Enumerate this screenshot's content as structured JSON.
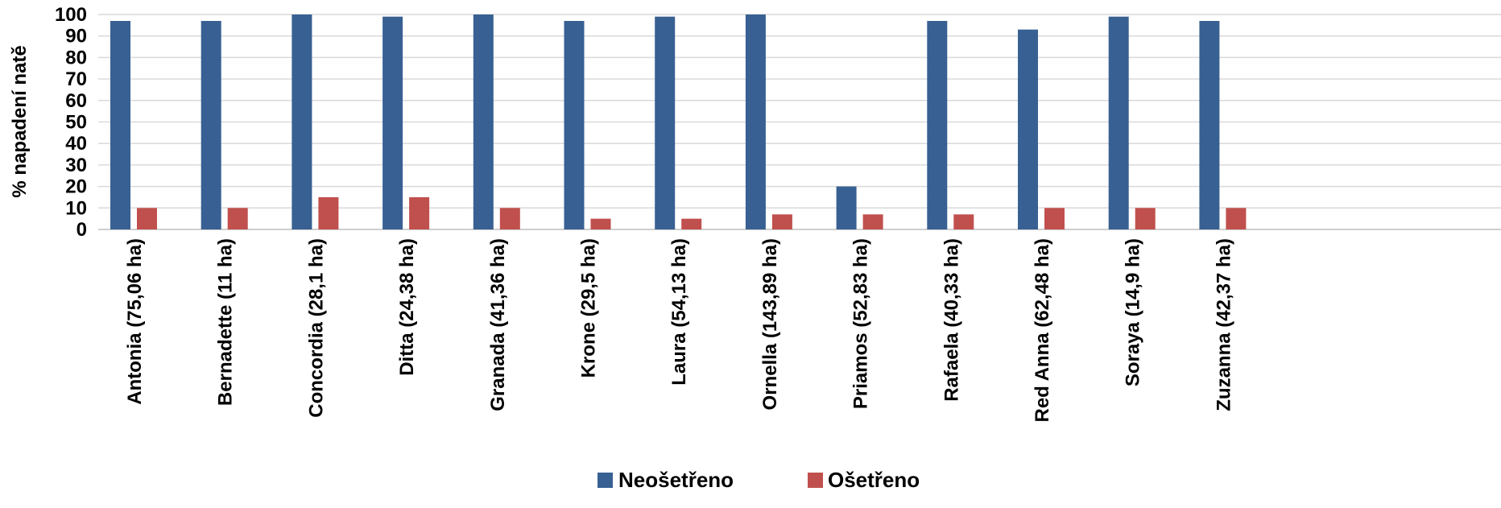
{
  "chart_data": {
    "type": "bar",
    "title": "",
    "xlabel": "",
    "ylabel": "% napadení natě",
    "ylim": [
      0,
      100
    ],
    "yticks": [
      0,
      10,
      20,
      30,
      40,
      50,
      60,
      70,
      80,
      90,
      100
    ],
    "grid": true,
    "legend_position": "bottom",
    "categories": [
      "Antonia (75,06 ha)",
      "Bernadette (11 ha)",
      "Concordia (28,1 ha)",
      "Ditta (24,38 ha)",
      "Granada (41,36 ha)",
      "Krone (29,5 ha)",
      "Laura (54,13 ha)",
      "Ornella (143,89 ha)",
      "Priamos (52,83 ha)",
      "Rafaela (40,33 ha)",
      "Red Anna (62,48 ha)",
      "Soraya (14,9 ha)",
      "Zuzanna (42,37 ha)"
    ],
    "series": [
      {
        "name": "Neošetřeno",
        "color": "#386092",
        "values": [
          97,
          97,
          100,
          99,
          100,
          97,
          99,
          100,
          20,
          97,
          93,
          99,
          97
        ]
      },
      {
        "name": "Ošetřeno",
        "color": "#C0504D",
        "values": [
          10,
          10,
          15,
          15,
          10,
          5,
          5,
          7,
          7,
          7,
          10,
          10,
          10
        ]
      }
    ]
  }
}
